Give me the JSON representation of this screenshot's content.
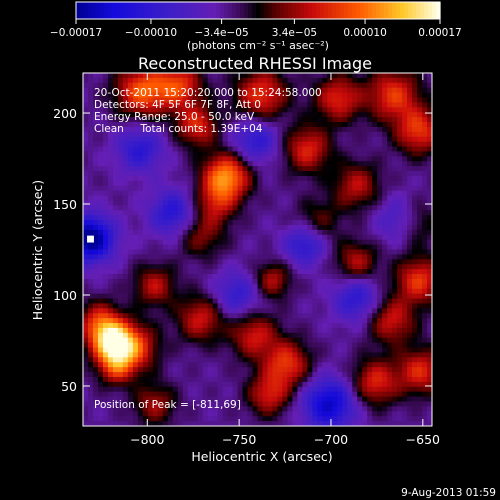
{
  "chart_data": {
    "type": "heatmap",
    "title": "Reconstructed RHESSI Image",
    "xlabel": "Heliocentric X (arcsec)",
    "ylabel": "Heliocentric Y (arcsec)",
    "xlim": [
      -835,
      -645
    ],
    "ylim": [
      28,
      222
    ],
    "xticks": [
      -800,
      -750,
      -700,
      -650
    ],
    "xtick_labels": [
      "−800",
      "−750",
      "−700",
      "−650"
    ],
    "yticks": [
      50,
      100,
      150,
      200
    ],
    "ytick_labels": [
      "50",
      "100",
      "150",
      "200"
    ],
    "colorbar": {
      "ticks": [
        -0.00017,
        -0.0001,
        -3.4e-05,
        3.4e-05,
        0.0001,
        0.00017
      ],
      "tick_labels": [
        "−0.00017",
        "−0.00010",
        "−3.4e−05",
        "3.4e−05",
        "0.00010",
        "0.00017"
      ],
      "unit_label": "(photons cm⁻² s⁻¹ asec⁻²)",
      "range": [
        -0.00017,
        0.00017
      ]
    },
    "annotations": [
      "20-Oct-2011 15:20:20.000 to 15:24:58.000",
      "Detectors: 4F 5F 6F 7F 8F, Att 0",
      "Energy Range: 25.0 - 50.0 keV",
      "Clean     Total counts: 1.39E+04"
    ],
    "peak_label": "Position of Peak = [-811,69]",
    "peak": [
      -811,
      69
    ],
    "marker": [
      -831,
      131
    ],
    "blobs": [
      {
        "x": -819,
        "y": 74,
        "v": 1.0,
        "s": 8
      },
      {
        "x": -807,
        "y": 71,
        "v": 0.6,
        "s": 9
      },
      {
        "x": -817,
        "y": 60,
        "v": 0.5,
        "s": 7
      },
      {
        "x": -757,
        "y": 165,
        "v": 0.85,
        "s": 9
      },
      {
        "x": -763,
        "y": 150,
        "v": 0.4,
        "s": 8
      },
      {
        "x": -803,
        "y": 212,
        "v": 0.7,
        "s": 10
      },
      {
        "x": -783,
        "y": 215,
        "v": 0.6,
        "s": 9
      },
      {
        "x": -773,
        "y": 193,
        "v": 0.55,
        "s": 8
      },
      {
        "x": -738,
        "y": 210,
        "v": 0.6,
        "s": 10
      },
      {
        "x": -713,
        "y": 180,
        "v": 0.55,
        "s": 9
      },
      {
        "x": -696,
        "y": 208,
        "v": 0.55,
        "s": 9
      },
      {
        "x": -666,
        "y": 210,
        "v": 0.6,
        "s": 10
      },
      {
        "x": -652,
        "y": 190,
        "v": 0.6,
        "s": 9
      },
      {
        "x": -686,
        "y": 160,
        "v": 0.45,
        "s": 9
      },
      {
        "x": -656,
        "y": 140,
        "v": 0.55,
        "s": 9
      },
      {
        "x": -652,
        "y": 108,
        "v": 0.6,
        "s": 9
      },
      {
        "x": -686,
        "y": 118,
        "v": 0.45,
        "s": 8
      },
      {
        "x": -667,
        "y": 86,
        "v": 0.5,
        "s": 9
      },
      {
        "x": -732,
        "y": 108,
        "v": 0.45,
        "s": 7
      },
      {
        "x": -771,
        "y": 87,
        "v": 0.5,
        "s": 9
      },
      {
        "x": -796,
        "y": 105,
        "v": 0.45,
        "s": 8
      },
      {
        "x": -742,
        "y": 78,
        "v": 0.5,
        "s": 9
      },
      {
        "x": -724,
        "y": 62,
        "v": 0.6,
        "s": 9
      },
      {
        "x": -734,
        "y": 45,
        "v": 0.5,
        "s": 8
      },
      {
        "x": -676,
        "y": 52,
        "v": 0.55,
        "s": 9
      },
      {
        "x": -651,
        "y": 58,
        "v": 0.55,
        "s": 9
      },
      {
        "x": -826,
        "y": 85,
        "v": 0.55,
        "s": 8
      },
      {
        "x": -771,
        "y": 133,
        "v": 0.35,
        "s": 9
      },
      {
        "x": -707,
        "y": 140,
        "v": 0.3,
        "s": 9
      },
      {
        "x": -796,
        "y": 40,
        "v": 0.4,
        "s": 8
      },
      {
        "x": -831,
        "y": 131,
        "v": -0.9,
        "s": 9
      },
      {
        "x": -661,
        "y": 141,
        "v": -0.6,
        "s": 9
      },
      {
        "x": -701,
        "y": 40,
        "v": -0.7,
        "s": 10
      },
      {
        "x": -714,
        "y": 128,
        "v": -0.5,
        "s": 8
      },
      {
        "x": -741,
        "y": 185,
        "v": -0.45,
        "s": 9
      },
      {
        "x": -786,
        "y": 145,
        "v": -0.5,
        "s": 9
      },
      {
        "x": -751,
        "y": 100,
        "v": -0.4,
        "s": 9
      },
      {
        "x": -804,
        "y": 180,
        "v": -0.45,
        "s": 9
      },
      {
        "x": -686,
        "y": 98,
        "v": -0.45,
        "s": 9
      }
    ]
  },
  "footer": {
    "date": "9-Aug-2013 01:59"
  }
}
